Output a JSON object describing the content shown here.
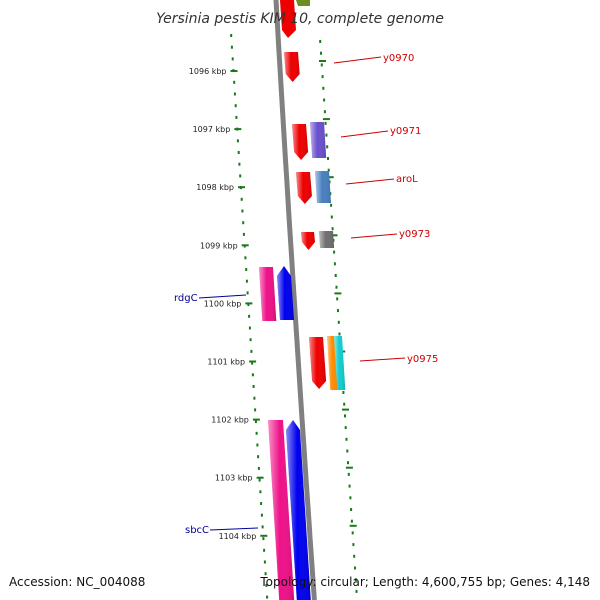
{
  "title": "Yersinia pestis KIM 10, complete genome",
  "accession": "Accession: NC_004088",
  "topology": "Topology: circular; Length: 4,600,755 bp; Genes: 4,148",
  "ticks": [
    {
      "label": "1096 kbp"
    },
    {
      "label": "1097 kbp"
    },
    {
      "label": "1098 kbp"
    },
    {
      "label": "1099 kbp"
    },
    {
      "label": "1100 kbp"
    },
    {
      "label": "1101 kbp"
    },
    {
      "label": "1102 kbp"
    },
    {
      "label": "1103 kbp"
    },
    {
      "label": "1104 kbp"
    }
  ],
  "genes": [
    {
      "name": "y0970",
      "strand": "forward"
    },
    {
      "name": "y0971",
      "strand": "forward"
    },
    {
      "name": "aroL",
      "strand": "forward"
    },
    {
      "name": "y0973",
      "strand": "forward"
    },
    {
      "name": "y0975",
      "strand": "forward"
    },
    {
      "name": "rdgC",
      "strand": "reverse"
    },
    {
      "name": "sbcC",
      "strand": "reverse"
    }
  ],
  "colors": {
    "forward_label": "#cc0000",
    "reverse_label": "#000099",
    "tick": "#1a7a1a",
    "backbone": "#808080",
    "red": "#ee0000",
    "purple": "#6a4fcf",
    "steel_blue": "#4a7fc0",
    "gray": "#6e6e6e",
    "orange": "#ff8c00",
    "cyan": "#11cccc",
    "pink": "#ee1188",
    "blue": "#0000ee",
    "olive": "#6b8e23"
  }
}
